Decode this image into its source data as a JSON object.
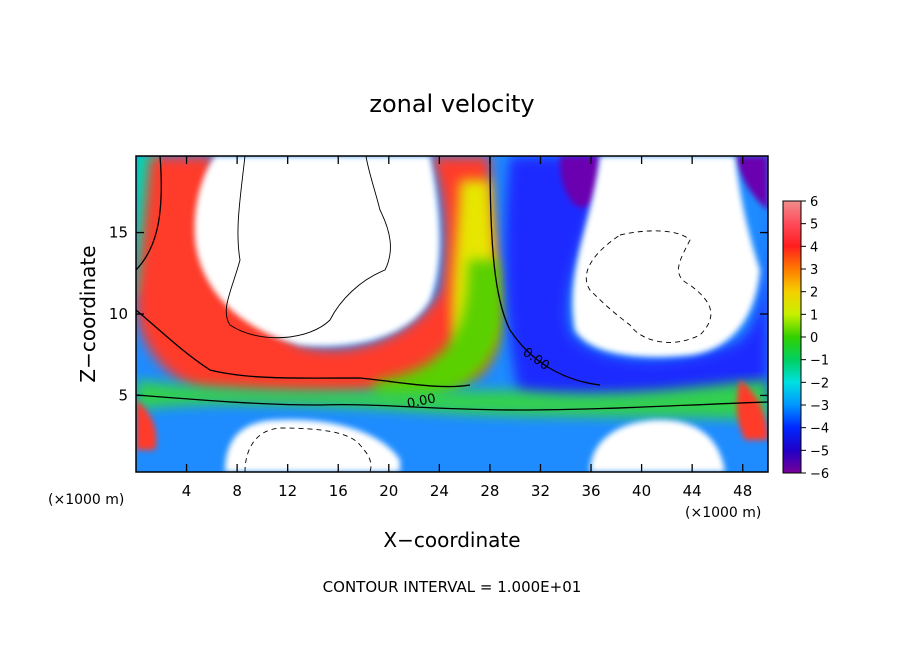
{
  "chart_data": {
    "type": "heatmap",
    "title": "zonal velocity",
    "xlabel": "X−coordinate",
    "ylabel": "Z−coordinate",
    "x_unit_note": "(×1000 m)",
    "x_unit_note_right": "(×1000 m)",
    "xlim": [
      0,
      50
    ],
    "ylim": [
      0.3,
      19.7
    ],
    "x_ticks": [
      "4",
      "8",
      "12",
      "16",
      "20",
      "24",
      "28",
      "32",
      "36",
      "40",
      "44",
      "48"
    ],
    "x_tick_values": [
      4,
      8,
      12,
      16,
      20,
      24,
      28,
      32,
      36,
      40,
      44,
      48
    ],
    "y_ticks": [
      "5",
      "10",
      "15"
    ],
    "y_tick_values": [
      5,
      10,
      15
    ],
    "colorbar": {
      "min": -6,
      "max": 6,
      "tick_labels": [
        "6",
        "5",
        "4",
        "3",
        "2",
        "1",
        "0",
        "−1",
        "−2",
        "−3",
        "−4",
        "−5",
        "−6"
      ],
      "tick_values": [
        6,
        5,
        4,
        3,
        2,
        1,
        0,
        -1,
        -2,
        -3,
        -4,
        -5,
        -6
      ]
    },
    "contour_labels": [
      {
        "text": "0.00",
        "x": 23.4,
        "y": 4.8
      },
      {
        "text": "0.00",
        "x": 32.4,
        "y": 6.4
      }
    ],
    "footer": "CONTOUR INTERVAL = 1.000E+01",
    "regions": [
      {
        "name": "upper-left low-level positive region",
        "x": [
          0,
          28
        ],
        "y": [
          4,
          19.7
        ],
        "value": "> 6"
      },
      {
        "name": "upper-right negative region",
        "x": [
          30,
          50
        ],
        "y": [
          6,
          19.7
        ],
        "value": "< -6"
      },
      {
        "name": "near-surface negative band",
        "x": [
          0,
          50
        ],
        "y": [
          0.3,
          5
        ],
        "value": "-6 to 6"
      }
    ]
  }
}
